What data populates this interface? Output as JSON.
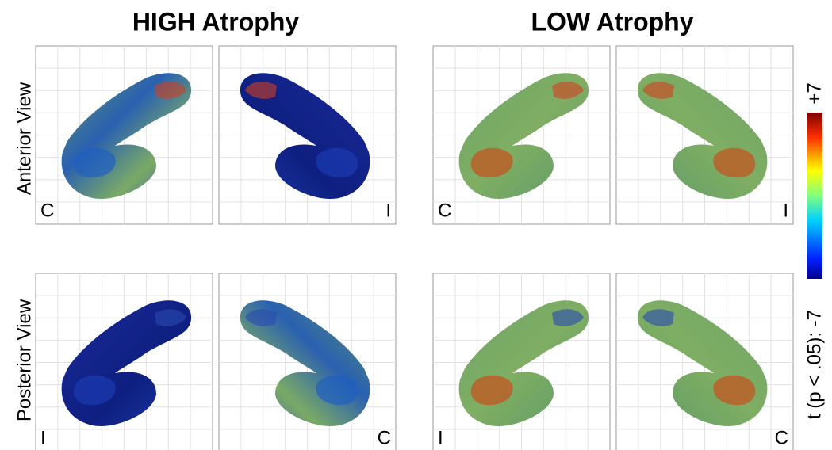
{
  "titles": [
    "HIGH Atrophy",
    "LOW Atrophy"
  ],
  "row_labels": [
    "Anterior View",
    "Posterior View"
  ],
  "panels": [
    {
      "corner_label": "C"
    },
    {
      "corner_label": "I"
    },
    {
      "corner_label": "C"
    },
    {
      "corner_label": "I"
    },
    {
      "corner_label": "I"
    },
    {
      "corner_label": "C"
    },
    {
      "corner_label": "I"
    },
    {
      "corner_label": "C"
    }
  ],
  "colorbar": {
    "max_label": "+7",
    "min_label": "t (p < .05): -7"
  }
}
